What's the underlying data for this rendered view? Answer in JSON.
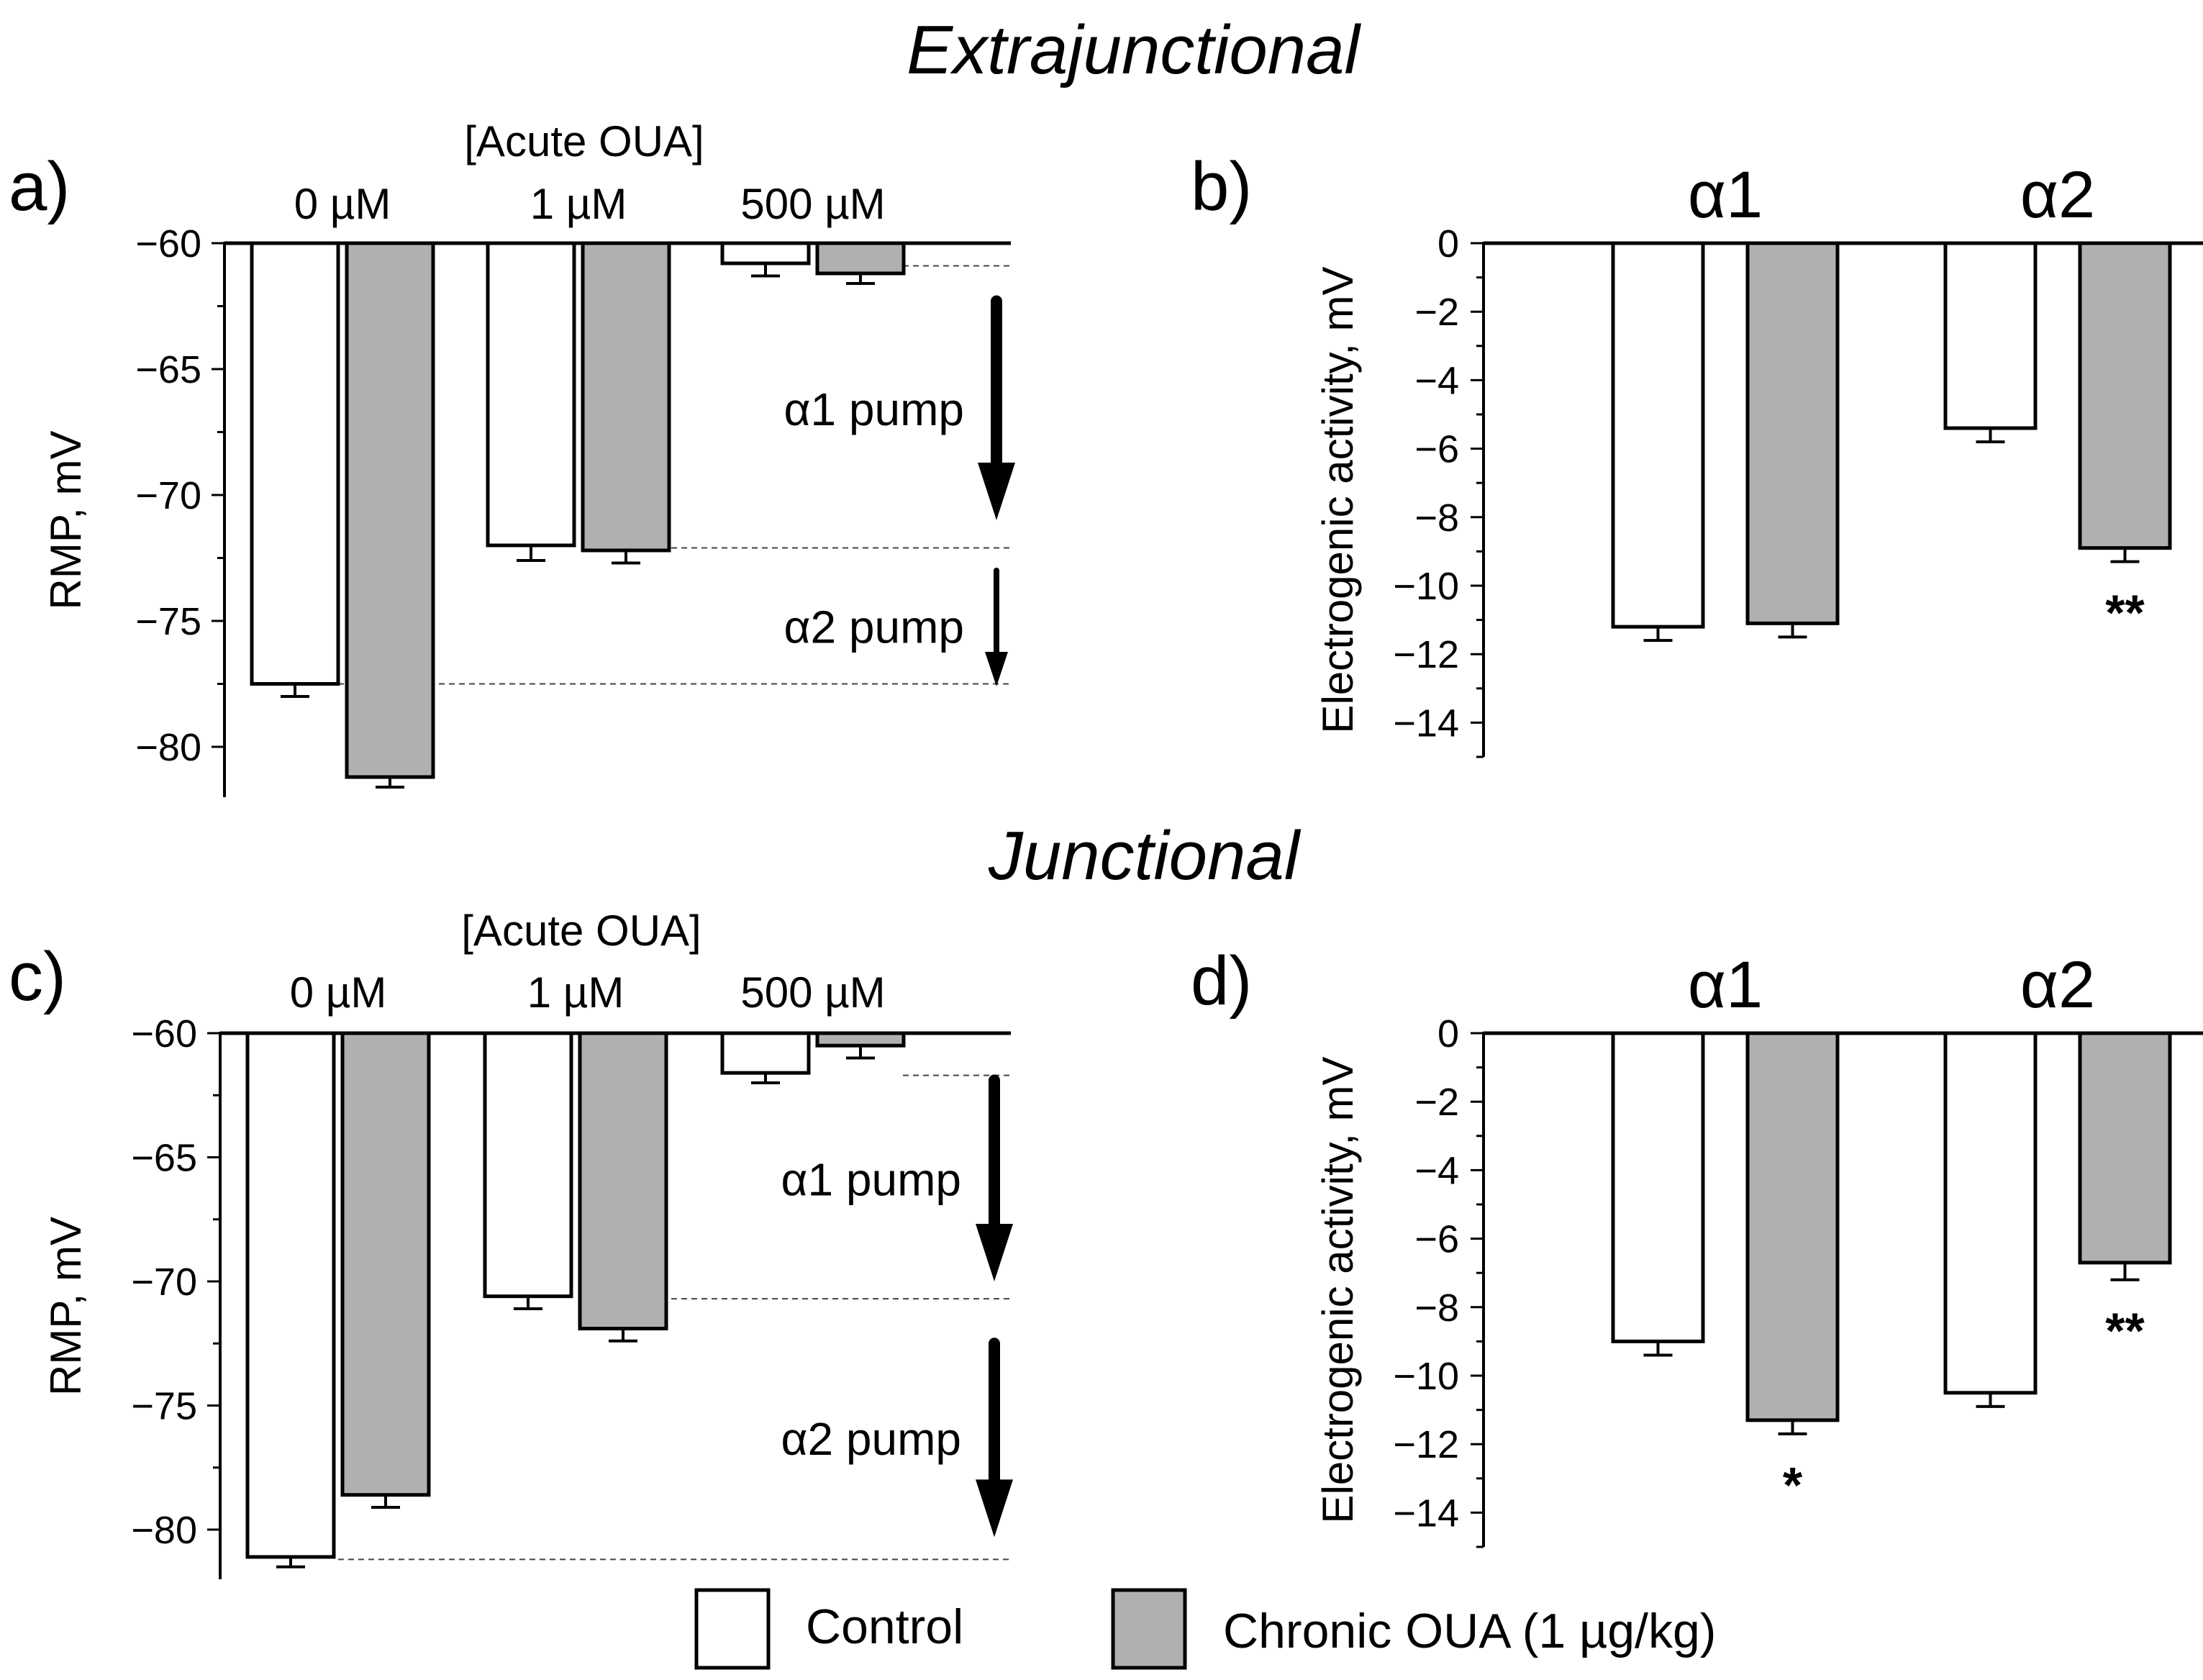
{
  "figure": {
    "sections": [
      {
        "title": "Extrajunctional"
      },
      {
        "title": "Junctional"
      }
    ],
    "legend": {
      "items": [
        {
          "label": "Control",
          "color": "#ffffff"
        },
        {
          "label": "Chronic OUA (1 µg/kg)",
          "color": "#b0b0b0"
        }
      ]
    }
  },
  "colors": {
    "control": "#ffffff",
    "chronic": "#b0b0b0",
    "stroke": "#000000"
  },
  "chart_data": [
    {
      "id": "a",
      "panel_label": "a)",
      "type": "bar",
      "section": "Extrajunctional",
      "group_title": "[Acute OUA]",
      "categories": [
        "0 µM",
        "1 µM",
        "500 µM"
      ],
      "ylabel": "RMP, mV",
      "ylim": [
        -82,
        -60
      ],
      "yticks": [
        -60,
        -65,
        -70,
        -75,
        -80
      ],
      "ytick_labels": [
        "−60",
        "−65",
        "−70",
        "−75",
        "−80"
      ],
      "series": [
        {
          "name": "Control",
          "values": [
            -77.5,
            -72.0,
            -60.8
          ],
          "errors": [
            0.5,
            0.6,
            0.5
          ]
        },
        {
          "name": "Chronic OUA (1 µg/kg)",
          "values": [
            -81.2,
            -72.2,
            -61.2
          ],
          "errors": [
            0.4,
            0.5,
            0.4
          ]
        }
      ],
      "annotations": [
        {
          "label": "α1 pump",
          "from": -62.3,
          "to": -71.0
        },
        {
          "label": "α2 pump",
          "from": -73.0,
          "to": -77.6
        }
      ],
      "reference_lines": [
        -60.9,
        -72.1,
        -77.5
      ]
    },
    {
      "id": "b",
      "panel_label": "b)",
      "type": "bar",
      "section": "Extrajunctional",
      "categories": [
        "α1",
        "α2"
      ],
      "ylabel": "Electrogenic activity, mV",
      "ylim": [
        -15,
        0
      ],
      "yticks": [
        0,
        -2,
        -4,
        -6,
        -8,
        -10,
        -12,
        -14
      ],
      "ytick_labels": [
        "0",
        "−2",
        "−4",
        "−6",
        "−8",
        "−10",
        "−12",
        "−14"
      ],
      "series": [
        {
          "name": "Control",
          "values": [
            -11.2,
            -5.4
          ],
          "errors": [
            0.4,
            0.4
          ]
        },
        {
          "name": "Chronic OUA (1 µg/kg)",
          "values": [
            -11.1,
            -8.9
          ],
          "errors": [
            0.4,
            0.4
          ]
        }
      ],
      "significance": [
        {
          "category": 1,
          "series": 1,
          "label": "**"
        }
      ]
    },
    {
      "id": "c",
      "panel_label": "c)",
      "type": "bar",
      "section": "Junctional",
      "group_title": "[Acute OUA]",
      "categories": [
        "0 µM",
        "1 µM",
        "500 µM"
      ],
      "ylabel": "RMP, mV",
      "ylim": [
        -82,
        -60
      ],
      "yticks": [
        -60,
        -65,
        -70,
        -75,
        -80
      ],
      "ytick_labels": [
        "−60",
        "−65",
        "−70",
        "−75",
        "−80"
      ],
      "series": [
        {
          "name": "Control",
          "values": [
            -81.1,
            -70.6,
            -61.6
          ],
          "errors": [
            0.4,
            0.5,
            0.4
          ]
        },
        {
          "name": "Chronic OUA (1 µg/kg)",
          "values": [
            -78.6,
            -71.9,
            -60.5
          ],
          "errors": [
            0.5,
            0.5,
            0.5
          ]
        }
      ],
      "annotations": [
        {
          "label": "α1 pump",
          "from": -61.9,
          "to": -70.0
        },
        {
          "label": "α2 pump",
          "from": -72.5,
          "to": -80.3
        }
      ],
      "reference_lines": [
        -61.7,
        -70.7,
        -81.2
      ]
    },
    {
      "id": "d",
      "panel_label": "d)",
      "type": "bar",
      "section": "Junctional",
      "categories": [
        "α1",
        "α2"
      ],
      "ylabel": "Electrogenic activity, mV",
      "ylim": [
        -15,
        0
      ],
      "yticks": [
        0,
        -2,
        -4,
        -6,
        -8,
        -10,
        -12,
        -14
      ],
      "ytick_labels": [
        "0",
        "−2",
        "−4",
        "−6",
        "−8",
        "−10",
        "−12",
        "−14"
      ],
      "series": [
        {
          "name": "Control",
          "values": [
            -9.0,
            -10.5
          ],
          "errors": [
            0.4,
            0.4
          ]
        },
        {
          "name": "Chronic OUA (1 µg/kg)",
          "values": [
            -11.3,
            -6.7
          ],
          "errors": [
            0.4,
            0.5
          ]
        }
      ],
      "significance": [
        {
          "category": 0,
          "series": 1,
          "label": "*"
        },
        {
          "category": 1,
          "series": 1,
          "label": "**"
        }
      ]
    }
  ]
}
